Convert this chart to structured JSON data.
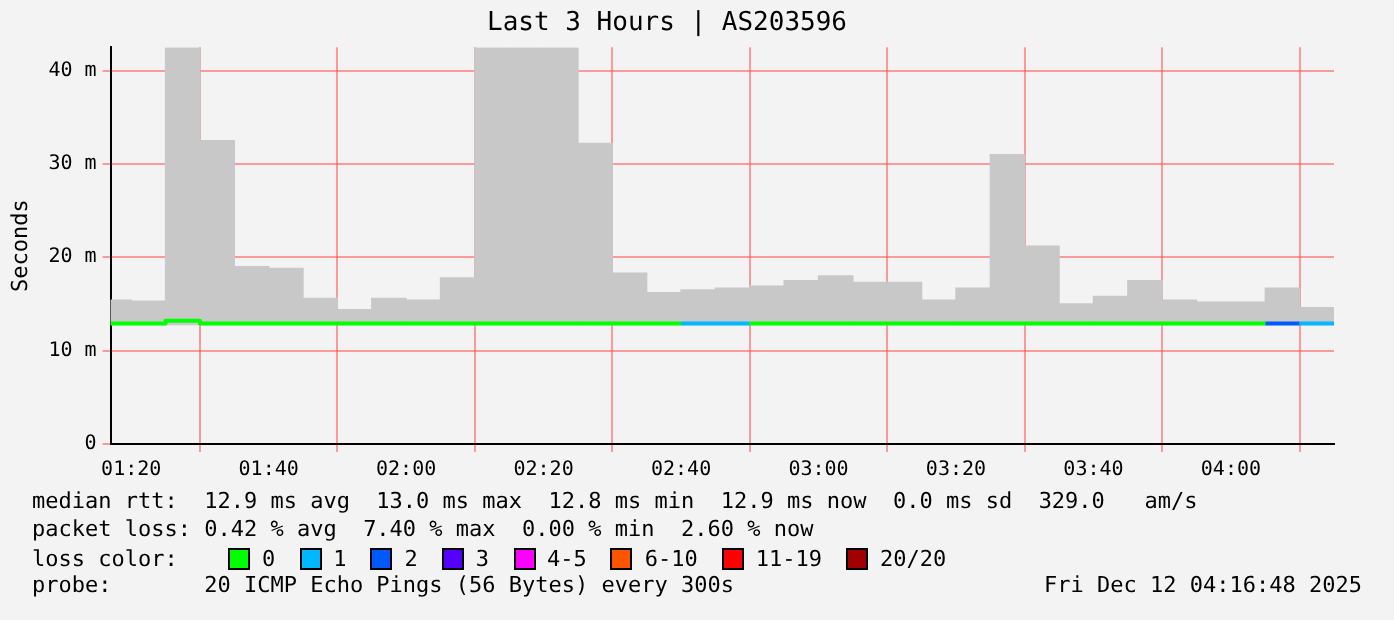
{
  "chart_data": {
    "type": "bar",
    "title": "Last 3 Hours | AS203596",
    "ylabel": "Seconds",
    "x": [
      1.2917,
      1.375,
      1.4583,
      1.5417,
      1.625,
      1.7083,
      1.7917,
      1.875,
      1.9583,
      2.0417,
      2.125,
      2.2083,
      2.2917,
      2.375,
      2.4583,
      2.5417,
      2.625,
      2.7083,
      2.7917,
      2.875,
      2.9583,
      3.0417,
      3.125,
      3.2083,
      3.2917,
      3.375,
      3.4583,
      3.5417,
      3.625,
      3.7083,
      3.7917,
      3.875,
      3.9583,
      4.0417,
      4.125,
      4.2083
    ],
    "series": [
      {
        "color": "#c8c8c8",
        "base": [
          12.8,
          12.8,
          12.8,
          12.8,
          12.8,
          12.8,
          12.8,
          12.8,
          12.8,
          12.8,
          12.8,
          12.8,
          12.8,
          12.8,
          12.8,
          12.8,
          12.8,
          12.8,
          12.8,
          12.8,
          12.8,
          12.8,
          12.8,
          12.8,
          12.8,
          12.8,
          12.8,
          12.8,
          12.8,
          12.8,
          12.8,
          12.8,
          12.8,
          12.8,
          12.8,
          12.8
        ],
        "values": [
          2.6,
          2.5,
          29.6,
          19.7,
          6.2,
          6.0,
          2.8,
          1.6,
          2.8,
          2.6,
          5.0,
          29.6,
          29.6,
          29.6,
          19.4,
          5.5,
          3.4,
          3.7,
          3.9,
          4.1,
          4.7,
          5.2,
          4.5,
          4.5,
          2.6,
          3.9,
          18.2,
          8.4,
          2.2,
          3.0,
          4.7,
          2.6,
          2.4,
          2.4,
          3.9,
          1.8
        ]
      },
      {
        "type": "line",
        "color": "#00ff00",
        "x": [
          1.2833,
          1.4167,
          1.4167,
          1.5,
          1.5,
          2.6667,
          2.7,
          2.8333,
          4.0833
        ],
        "values": [
          12.9,
          12.9,
          13.2,
          13.2,
          12.9,
          12.9,
          null,
          12.9,
          12.9
        ]
      },
      {
        "type": "line",
        "color": "#00b8ff",
        "x": [
          2.6667,
          2.8333,
          3.5,
          4.1667,
          4.25
        ],
        "values": [
          12.9,
          12.9,
          null,
          12.9,
          12.9
        ]
      },
      {
        "type": "line",
        "color": "#0059ff",
        "x": [
          4.0833,
          4.1667
        ],
        "values": [
          12.9,
          12.9
        ]
      }
    ],
    "xlim": [
      1.2833,
      4.25
    ],
    "xticks": [
      {
        "value": 1.3333,
        "label": "01:20"
      },
      {
        "value": 1.6667,
        "label": "01:40"
      },
      {
        "value": 2,
        "label": "02:00"
      },
      {
        "value": 2.3333,
        "label": "02:20"
      },
      {
        "value": 2.6667,
        "label": "02:40"
      },
      {
        "value": 3,
        "label": "03:00"
      },
      {
        "value": 3.3333,
        "label": "03:20"
      },
      {
        "value": 3.6667,
        "label": "03:40"
      },
      {
        "value": 4,
        "label": "04:00"
      }
    ],
    "ylim": [
      0,
      42.5
    ],
    "yticks": [
      0,
      {
        "value": 10,
        "label": "10 m"
      },
      {
        "value": 20,
        "label": "20 m"
      },
      {
        "value": 30,
        "label": "30 m"
      },
      {
        "value": 40,
        "label": "40 m"
      }
    ],
    "grid": true,
    "legend": false,
    "annotations": [
      "median rtt:  12.9 ms avg  13.0 ms max  12.8 ms min  12.9 ms now  0.0 ms sd  329.0   am/s",
      "packet loss: 0.42 % avg  7.40 % max  0.00 % min  2.60 % now",
      "loss color:",
      "0",
      "1",
      "2",
      "3",
      "4-5",
      "6-10",
      "11-19",
      "20/20",
      "probe:       20 ICMP Echo Pings (56 Bytes) every 300s",
      "Fri Dec 12 04:16:48 2025"
    ]
  }
}
